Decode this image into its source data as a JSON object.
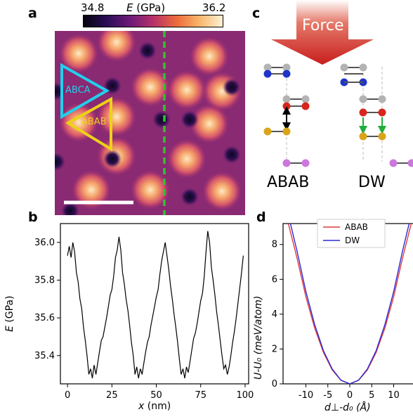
{
  "panels": {
    "a": "a",
    "b": "b",
    "c": "c",
    "d": "d"
  },
  "panel_a": {
    "colorbar": {
      "min_label": "34.8",
      "max_label": "36.2",
      "label_var": "E",
      "label_unit": " (GPa)"
    },
    "triangle_labels": {
      "abca": "ABCA",
      "abab": "ABAB"
    },
    "colors": {
      "abca": "#20d0ec",
      "abab": "#ecd21a",
      "dashed_line": "#2ec52e",
      "scale_bar": "#ffffff"
    }
  },
  "panel_c": {
    "force_label": "Force",
    "stack_labels": {
      "left": "ABAB",
      "right": "DW"
    },
    "colors": {
      "force_arrow": "#d42a2a",
      "atom_gray": "#b3b3b3",
      "atom_blue": "#1f35c9",
      "atom_red": "#d9261c",
      "atom_gold": "#d9a41a",
      "atom_violet": "#cc77dd",
      "arrow_green": "#1fae3a"
    }
  },
  "chart_data": [
    {
      "type": "line",
      "panel": "b",
      "ylabel_var": "E",
      "ylabel_unit": " (GPa)",
      "xlabel_var": "x",
      "xlabel_unit": " (nm)",
      "xlim": [
        -4,
        102
      ],
      "ylim": [
        35.25,
        36.1
      ],
      "xticks": [
        0,
        25,
        50,
        75,
        100
      ],
      "xtick_labels": [
        "0",
        "25",
        "50",
        "75",
        "100"
      ],
      "yticks": [
        35.4,
        35.6,
        35.8,
        36.0
      ],
      "ytick_labels": [
        "35.4",
        "35.6",
        "35.8",
        "36.0"
      ],
      "series": [
        {
          "color": "#000000",
          "x": [
            0,
            1,
            2,
            3,
            4,
            5,
            6,
            7,
            8,
            9,
            10,
            11,
            12,
            13,
            14,
            15,
            16,
            17,
            18,
            19,
            20,
            21,
            22,
            23,
            24,
            25,
            26,
            27,
            28,
            29,
            30,
            31,
            32,
            33,
            34,
            35,
            36,
            37,
            38,
            39,
            40,
            41,
            42,
            43,
            44,
            45,
            46,
            47,
            48,
            49,
            50,
            51,
            52,
            53,
            54,
            55,
            56,
            57,
            58,
            59,
            60,
            61,
            62,
            63,
            64,
            65,
            66,
            67,
            68,
            69,
            70,
            71,
            72,
            73,
            74,
            75,
            76,
            77,
            78,
            79,
            80,
            81,
            82,
            83,
            84,
            85,
            86,
            87,
            88,
            89,
            90,
            91,
            92,
            93,
            94,
            95,
            96,
            97,
            98,
            99
          ],
          "y": [
            35.93,
            35.98,
            35.92,
            36.0,
            35.95,
            35.84,
            35.79,
            35.7,
            35.65,
            35.55,
            35.48,
            35.4,
            35.3,
            35.33,
            35.28,
            35.35,
            35.3,
            35.36,
            35.42,
            35.48,
            35.5,
            35.55,
            35.6,
            35.66,
            35.72,
            35.75,
            35.82,
            35.92,
            35.96,
            36.03,
            35.96,
            35.84,
            35.78,
            35.7,
            35.64,
            35.56,
            35.47,
            35.4,
            35.3,
            35.34,
            35.28,
            35.33,
            35.3,
            35.36,
            35.42,
            35.47,
            35.5,
            35.56,
            35.61,
            35.66,
            35.71,
            35.75,
            35.83,
            35.9,
            35.95,
            36.0,
            35.93,
            35.86,
            35.77,
            35.7,
            35.62,
            35.55,
            35.47,
            35.38,
            35.3,
            35.33,
            35.28,
            35.34,
            35.31,
            35.37,
            35.43,
            35.49,
            35.52,
            35.57,
            35.63,
            35.69,
            35.73,
            35.82,
            35.95,
            36.06,
            36.0,
            35.87,
            35.8,
            35.72,
            35.63,
            35.56,
            35.48,
            35.4,
            35.33,
            35.35,
            35.3,
            35.34,
            35.4,
            35.47,
            35.53,
            35.6,
            35.68,
            35.76,
            35.84,
            35.93
          ]
        }
      ]
    },
    {
      "type": "line",
      "panel": "d",
      "ylabel": "U-U₀ (meV/atom)",
      "xlabel": "d⊥-d₀ (Å)",
      "xlim": [
        -15.2,
        15.2
      ],
      "ylim": [
        0,
        9.2
      ],
      "xticks": [
        -10,
        -5,
        0,
        5,
        10
      ],
      "xtick_labels": [
        "-10",
        "-5",
        "0",
        "5",
        "10"
      ],
      "yticks": [
        0,
        2,
        4,
        6,
        8
      ],
      "ytick_labels": [
        "0",
        "2",
        "4",
        "6",
        "8"
      ],
      "legend_position": "top",
      "series": [
        {
          "name": "ABAB",
          "color": "#e03a3a",
          "x": [
            -14,
            -12,
            -10,
            -8,
            -6,
            -4,
            -2,
            0,
            2,
            4,
            6,
            8,
            10,
            12,
            14
          ],
          "y": [
            9.2,
            7.2,
            5.0,
            3.2,
            1.8,
            0.8,
            0.2,
            0.0,
            0.2,
            0.8,
            1.8,
            3.2,
            5.0,
            7.2,
            9.2
          ]
        },
        {
          "name": "DW",
          "color": "#2a2ad6",
          "x": [
            -14,
            -12,
            -10,
            -8,
            -6,
            -4,
            -2,
            0,
            2,
            4,
            6,
            8,
            10,
            12,
            14
          ],
          "y": [
            9.7,
            7.6,
            5.3,
            3.4,
            1.9,
            0.85,
            0.21,
            0.0,
            0.21,
            0.85,
            1.9,
            3.4,
            5.3,
            7.6,
            9.7
          ]
        }
      ]
    }
  ]
}
